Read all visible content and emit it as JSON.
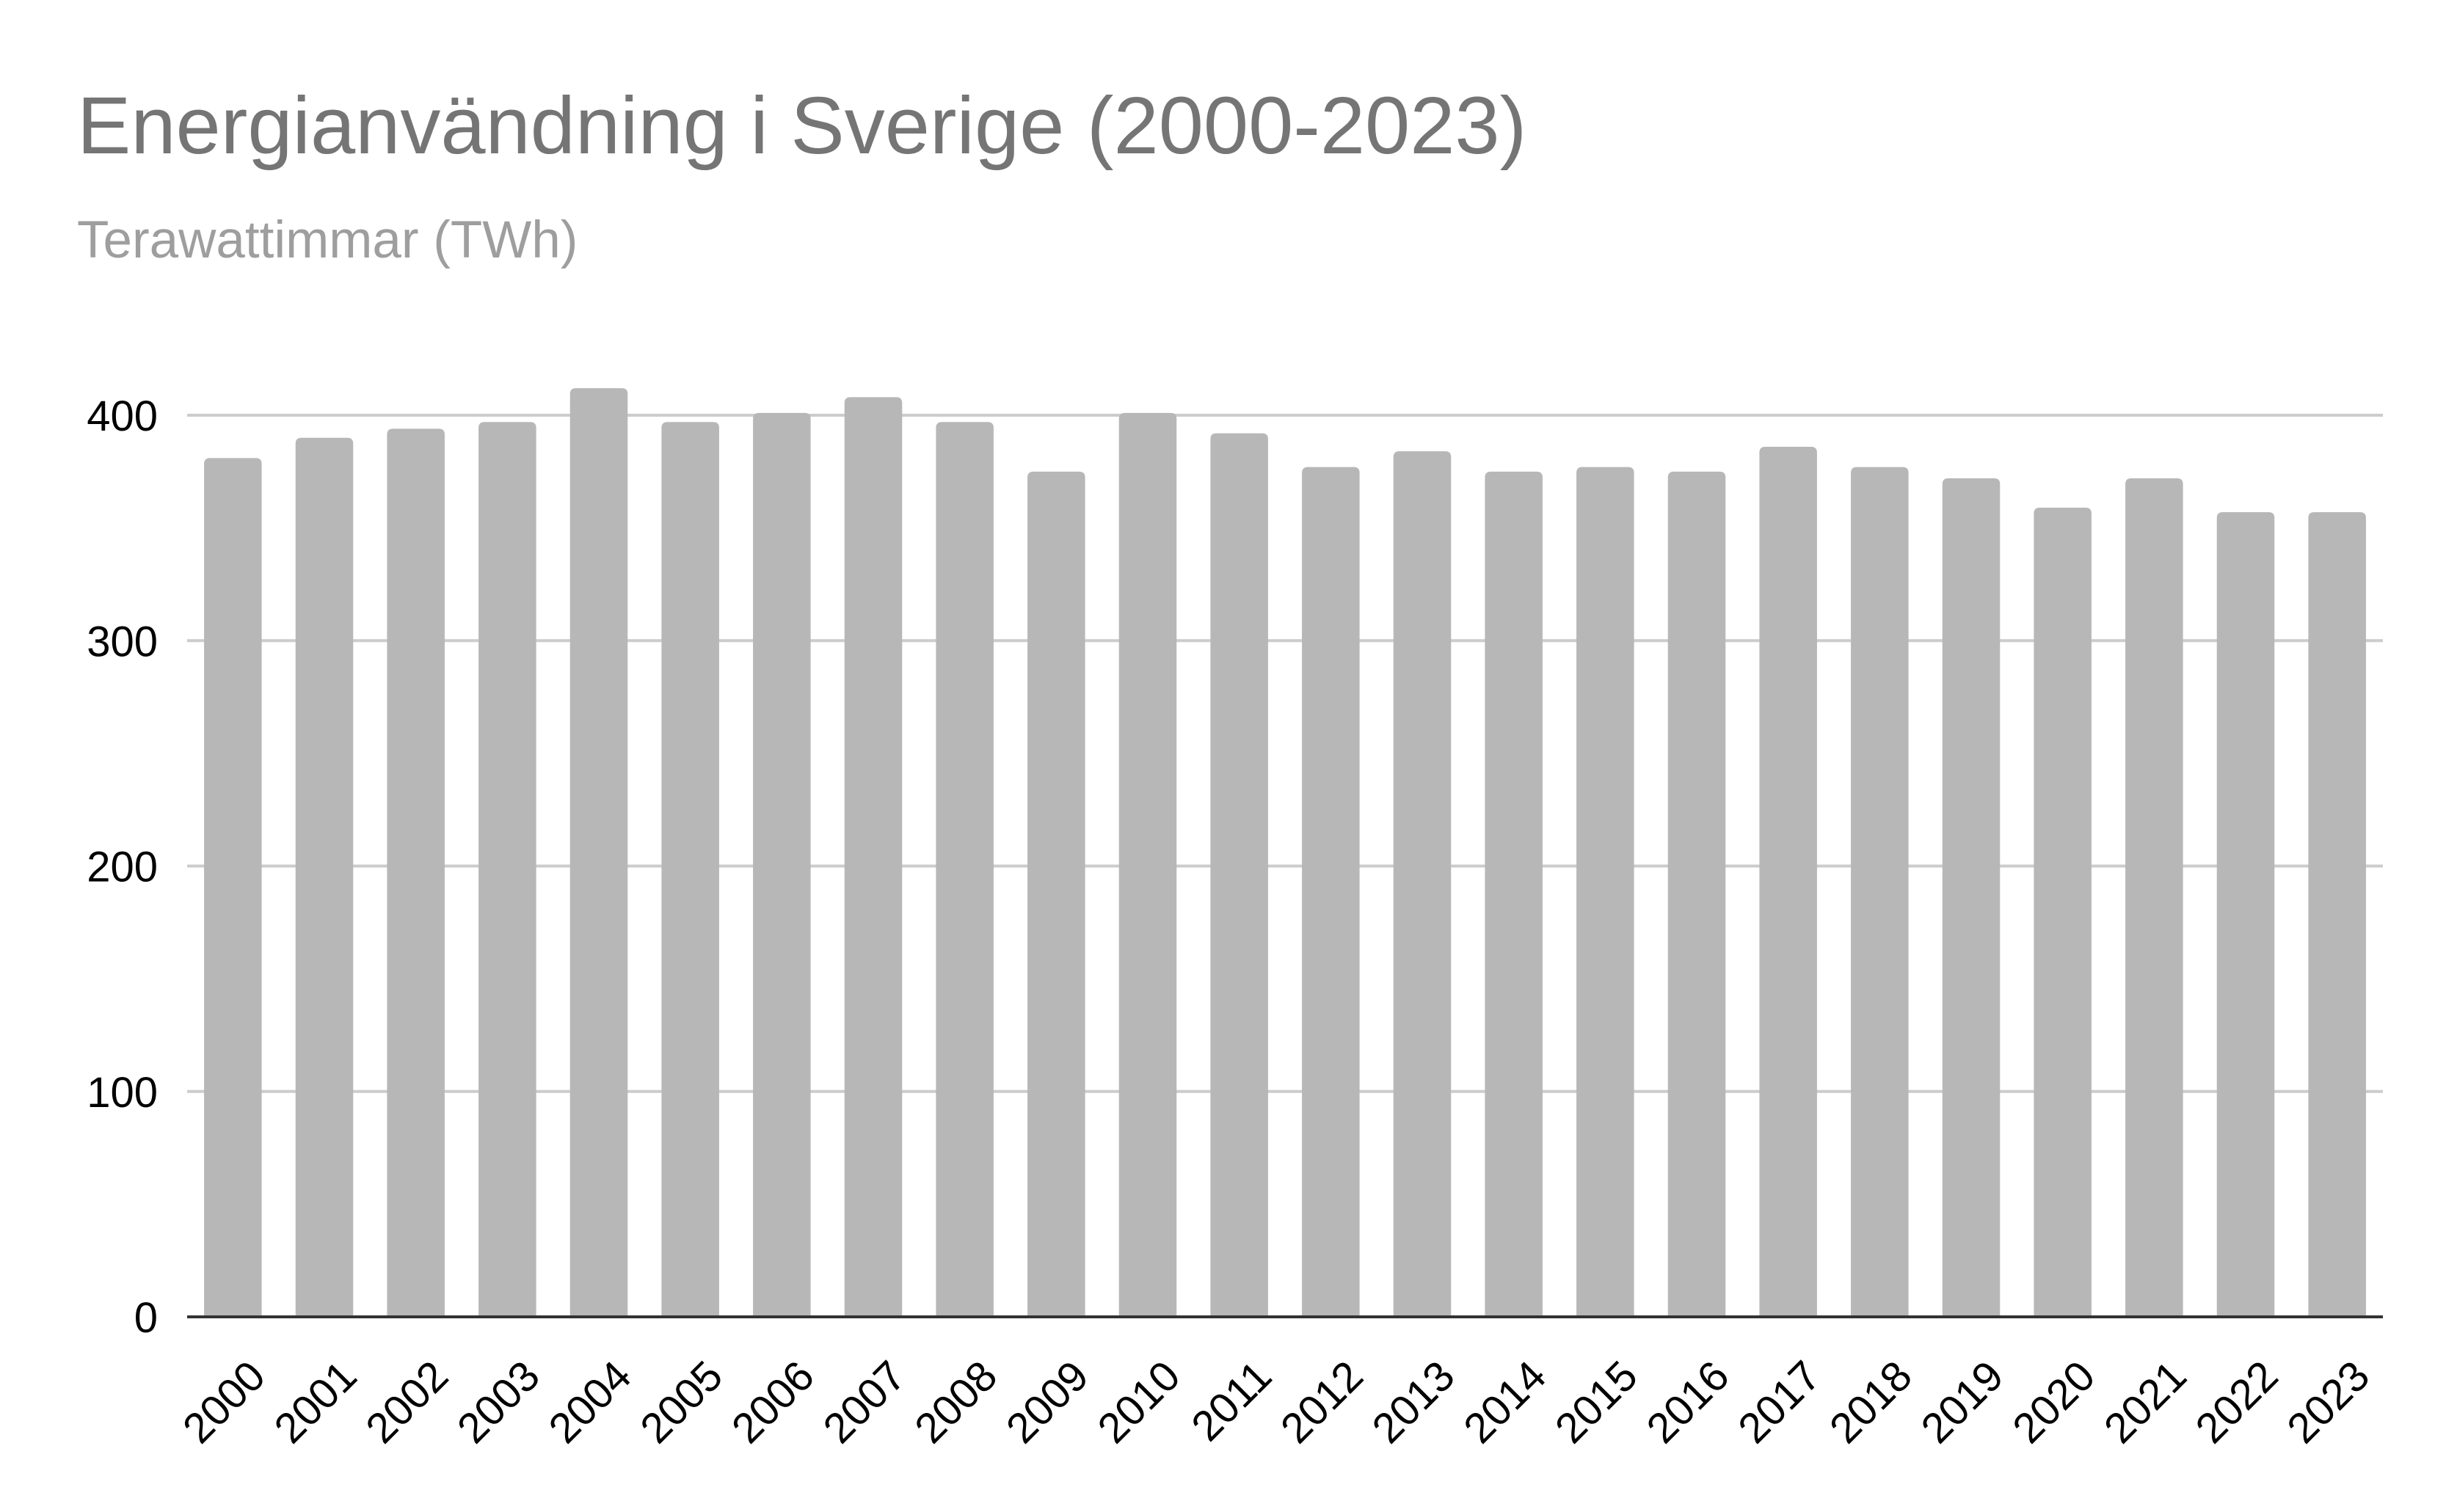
{
  "chart_data": {
    "type": "bar",
    "title": "Energianvändning i Sverige (2000-2023)",
    "subtitle": "Terawattimmar (TWh)",
    "xlabel": "",
    "ylabel": "",
    "categories": [
      "2000",
      "2001",
      "2002",
      "2003",
      "2004",
      "2005",
      "2006",
      "2007",
      "2008",
      "2009",
      "2010",
      "2011",
      "2012",
      "2013",
      "2014",
      "2015",
      "2016",
      "2017",
      "2018",
      "2019",
      "2020",
      "2021",
      "2022",
      "2023"
    ],
    "values": [
      381,
      390,
      394,
      397,
      412,
      397,
      401,
      408,
      397,
      375,
      401,
      392,
      377,
      384,
      375,
      377,
      375,
      386,
      377,
      372,
      359,
      372,
      357,
      357
    ],
    "ylim": [
      0,
      400
    ],
    "yticks": [
      0,
      100,
      200,
      300,
      400
    ],
    "grid": true,
    "legend": "none",
    "colors": {
      "bar": "#b7b7b7",
      "grid": "#cccccc",
      "axis": "#333333"
    }
  }
}
